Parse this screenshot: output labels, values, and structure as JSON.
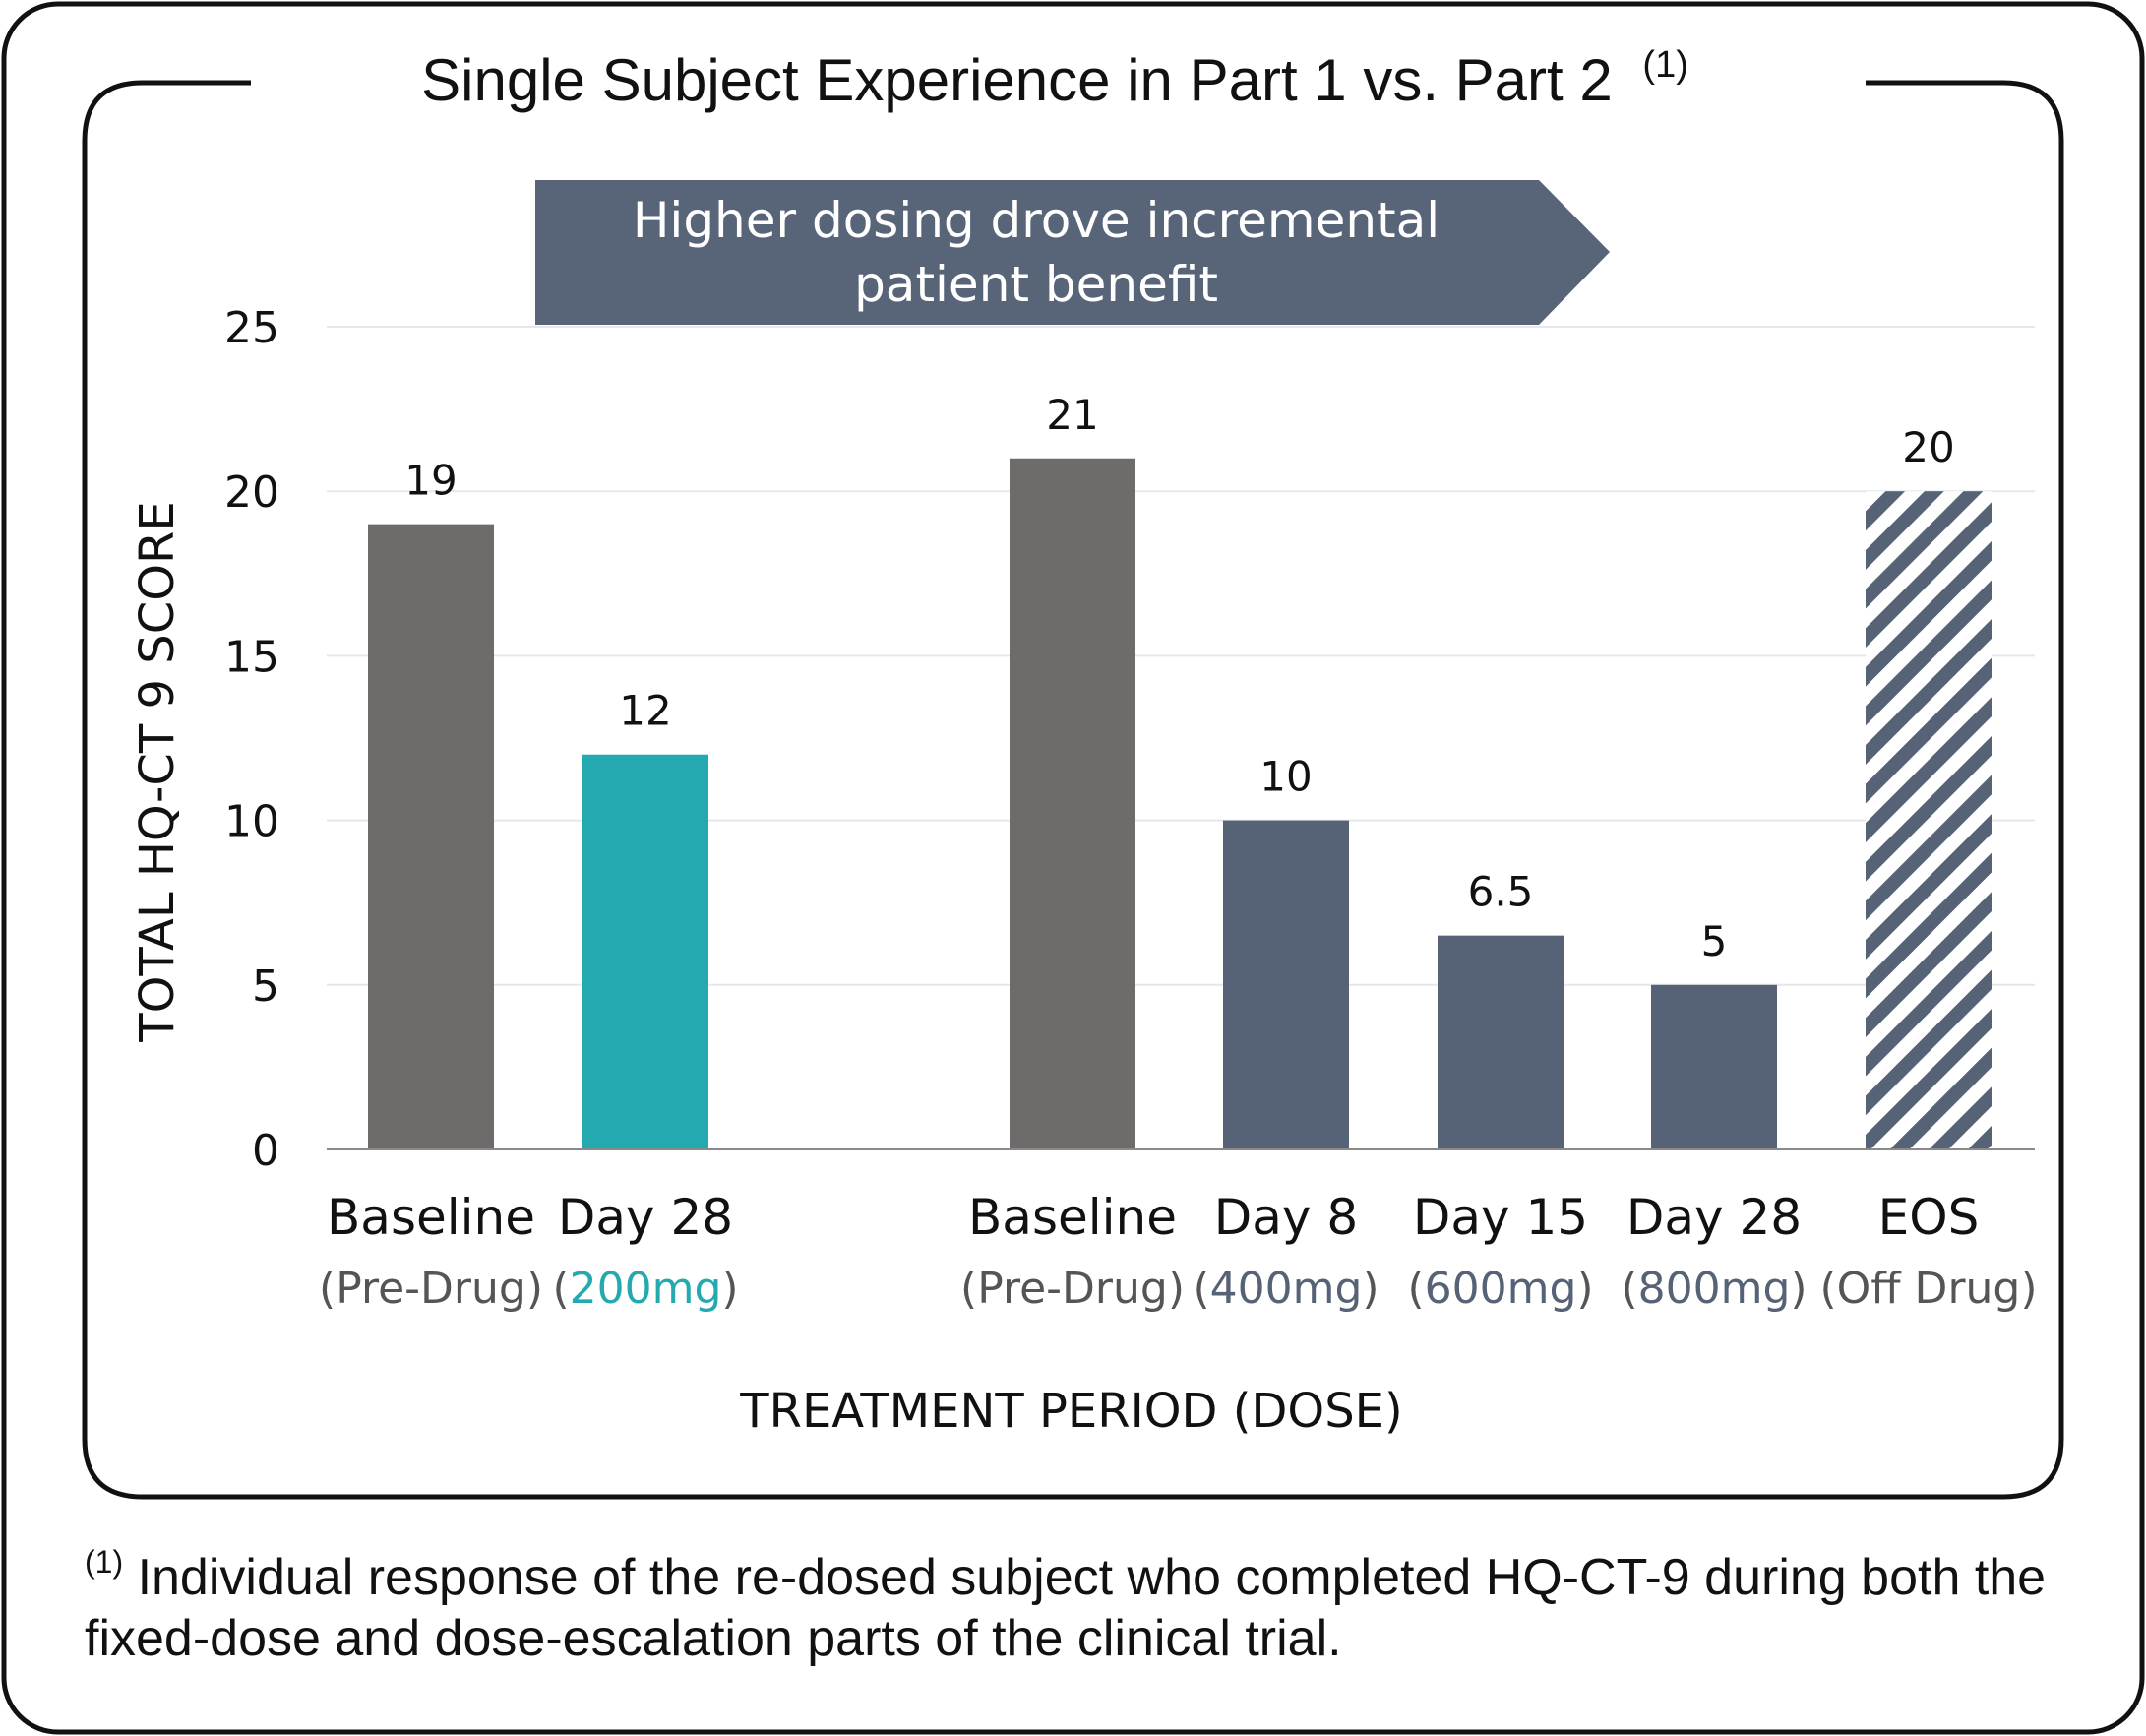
{
  "colors": {
    "baseline": "#706b6b",
    "fixed_dose": "#25a9b0",
    "escalation": "#566275",
    "hatch": "#566275",
    "banner": "#586478",
    "frame": "#111111",
    "grid": "#e4e8ec"
  },
  "banner": {
    "line1": "Higher dosing drove incremental",
    "line2": "patient benefit"
  },
  "footnote": {
    "marker": "(1)",
    "text": "Individual response of the re-dosed subject who completed HQ-CT-9 during both the fixed-dose and dose-escalation parts of the clinical trial."
  },
  "chart_data": {
    "type": "bar",
    "title": "Single Subject Experience in Part 1 vs. Part 2",
    "title_note": "(1)",
    "xlabel": "TREATMENT PERIOD (DOSE)",
    "ylabel": "TOTAL HQ-CT 9 SCORE",
    "ylim": [
      0,
      25
    ],
    "yticks": [
      "0",
      "5",
      "10",
      "15",
      "20",
      "25"
    ],
    "grid": true,
    "legend": "none",
    "bars": [
      {
        "label": "Baseline",
        "dose": "Pre-Drug",
        "value": 19,
        "value_label": "19",
        "fill": "baseline",
        "hatch": false
      },
      {
        "label": "Day 28",
        "dose": "200mg",
        "value": 12,
        "value_label": "12",
        "fill": "fixed_dose",
        "hatch": false
      },
      {
        "label": "Baseline",
        "dose": "Pre-Drug",
        "value": 21,
        "value_label": "21",
        "fill": "baseline",
        "hatch": false
      },
      {
        "label": "Day 8",
        "dose": "400mg",
        "value": 10,
        "value_label": "10",
        "fill": "escalation",
        "hatch": false
      },
      {
        "label": "Day 15",
        "dose": "600mg",
        "value": 6.5,
        "value_label": "6.5",
        "fill": "escalation",
        "hatch": false
      },
      {
        "label": "Day 28",
        "dose": "800mg",
        "value": 5,
        "value_label": "5",
        "fill": "escalation",
        "hatch": false
      },
      {
        "label": "EOS",
        "dose": "Off Drug",
        "value": 20,
        "value_label": "20",
        "fill": "hatch",
        "hatch": true
      }
    ]
  }
}
